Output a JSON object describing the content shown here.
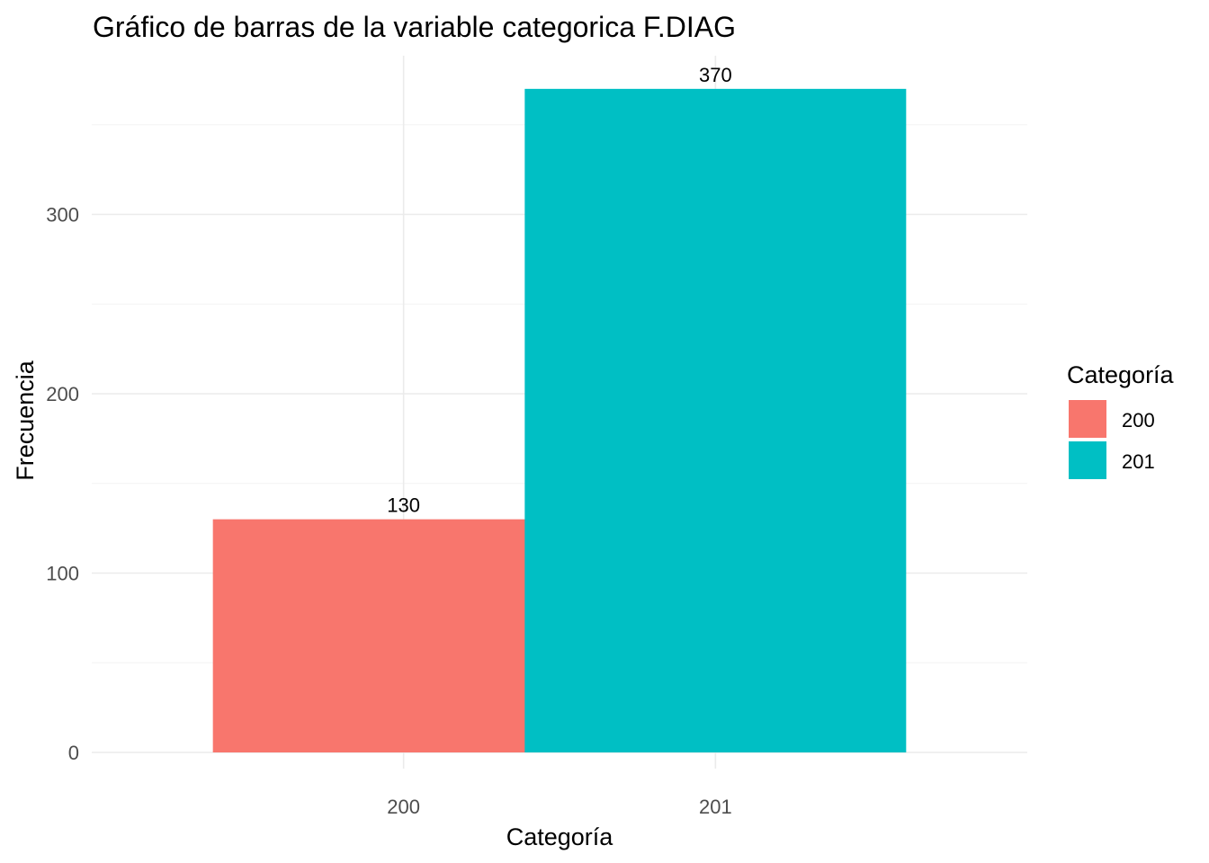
{
  "chart_data": {
    "type": "bar",
    "title": "Gráfico de barras de la variable categorica F.DIAG",
    "xlabel": "Categoría",
    "ylabel": "Frecuencia",
    "categories": [
      "200",
      "201"
    ],
    "values": [
      130,
      370
    ],
    "data_labels": [
      "130",
      "370"
    ],
    "colors": [
      "#F8766D",
      "#00BFC4"
    ],
    "ylim": [
      0,
      389
    ],
    "yticks": [
      0,
      100,
      200,
      300
    ],
    "ytick_labels": [
      "0",
      "100",
      "200",
      "300"
    ],
    "grid": true,
    "legend": {
      "title": "Categoría",
      "placement": "right",
      "entries": [
        "200",
        "201"
      ]
    }
  }
}
